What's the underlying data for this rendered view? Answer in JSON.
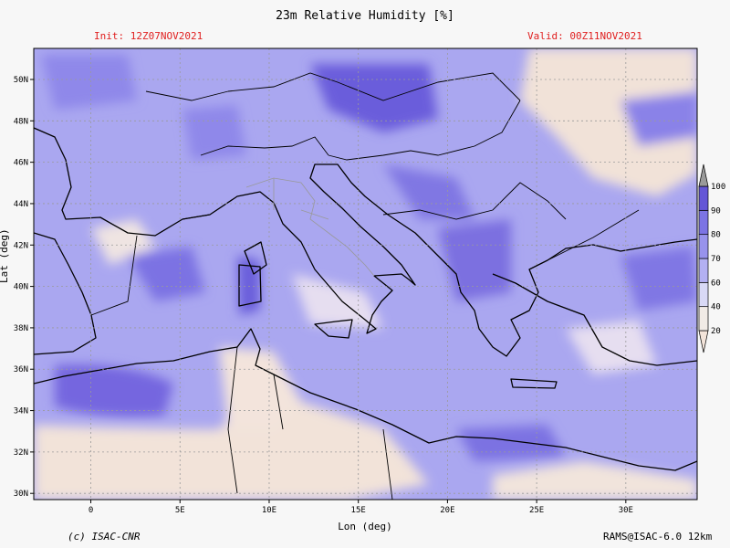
{
  "header": {
    "title": "23m Relative Humidity [%]",
    "init": "Init: 12Z07NOV2021",
    "valid": "Valid: 00Z11NOV2021"
  },
  "footer": {
    "credit_left": "(c) ISAC-CNR",
    "credit_right": "RAMS@ISAC-6.0 12km"
  },
  "chart_data": {
    "type": "heatmap",
    "title": "23m Relative Humidity [%]",
    "xlabel": "Lon (deg)",
    "ylabel": "Lat (deg)",
    "x_range": [
      -3.2,
      34
    ],
    "y_range": [
      29.7,
      51.5
    ],
    "x_ticks": [
      0,
      5,
      10,
      15,
      20,
      25,
      30
    ],
    "x_tick_labels": [
      "0",
      "5E",
      "10E",
      "15E",
      "20E",
      "25E",
      "30E"
    ],
    "y_ticks": [
      30,
      32,
      34,
      36,
      38,
      40,
      42,
      44,
      46,
      48,
      50
    ],
    "y_tick_labels": [
      "30N",
      "32N",
      "34N",
      "36N",
      "38N",
      "40N",
      "42N",
      "44N",
      "46N",
      "48N",
      "50N"
    ],
    "grid": true,
    "colorbar": {
      "levels": [
        20,
        40,
        60,
        70,
        80,
        90,
        100
      ],
      "labels": [
        "20",
        "40",
        "60",
        "70",
        "80",
        "90",
        "100"
      ],
      "colors": [
        "#f3e4da",
        "#f1ebe6",
        "#d9d9f6",
        "#b3b0f2",
        "#9893ec",
        "#7c74e4",
        "#6456d6"
      ],
      "placement": "right"
    }
  }
}
